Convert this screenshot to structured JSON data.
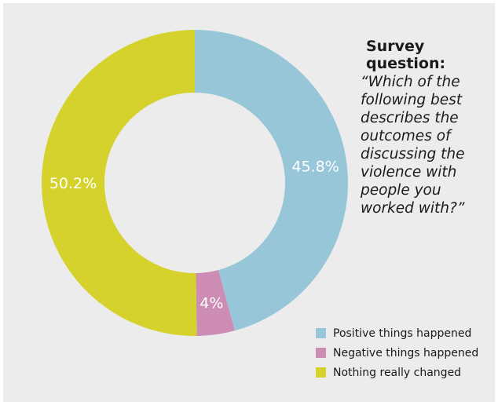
{
  "question": {
    "heading": "Survey question:",
    "text": "“Which of the following best describes the outcomes of discussing the violence with people you worked with?”"
  },
  "chart_data": {
    "type": "pie",
    "donut": true,
    "title": "",
    "slices": [
      {
        "label": "Positive things happened",
        "value": 45.8,
        "display": "45.8%",
        "color": "#96c6d8"
      },
      {
        "label": "Negative things happened",
        "value": 4.0,
        "display": "4%",
        "color": "#cc8cb3"
      },
      {
        "label": "Nothing really changed",
        "value": 50.2,
        "display": "50.2%",
        "color": "#d5d22e"
      }
    ],
    "start": "12 o'clock",
    "direction": "clockwise",
    "legend_position": "bottom-right"
  }
}
